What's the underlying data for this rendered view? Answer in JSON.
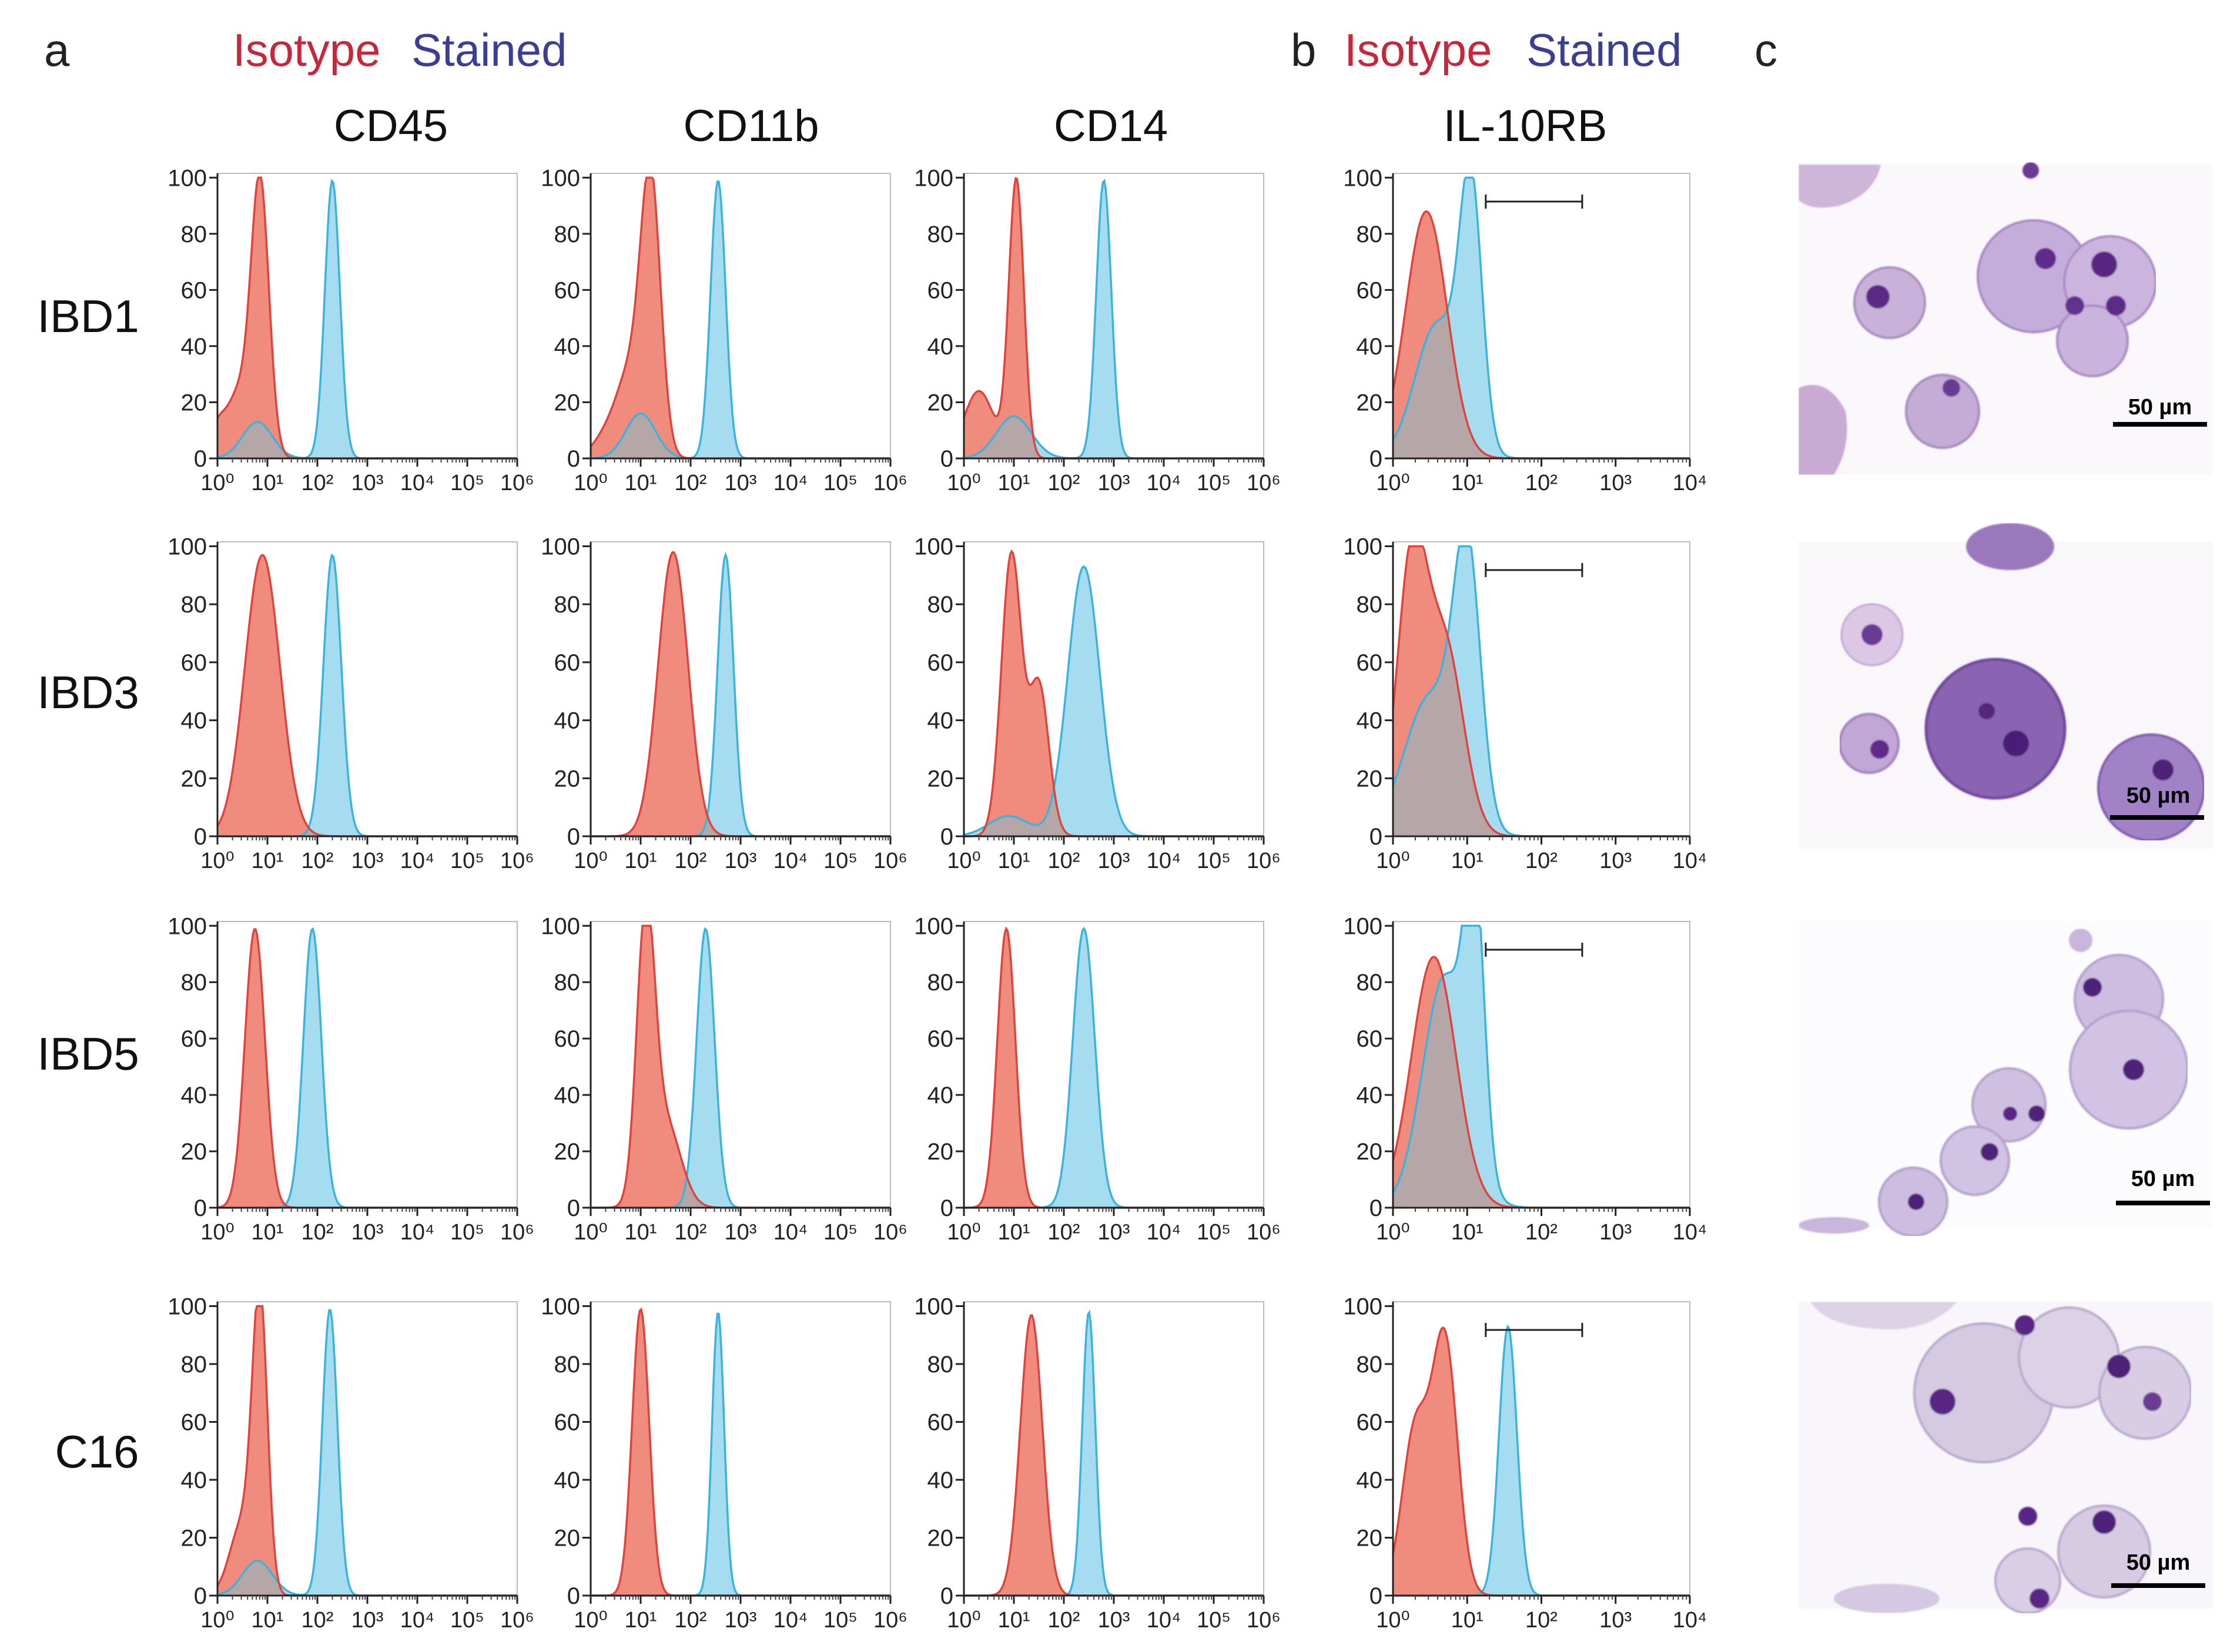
{
  "panel_labels": {
    "a": "a",
    "b": "b",
    "c": "c"
  },
  "legend": {
    "isotype": "Isotype",
    "stained": "Stained"
  },
  "colors": {
    "isotype_line": "#e0433b",
    "isotype_fill": "#f08c7d",
    "stained_line": "#3cb3dc",
    "stained_fill": "#a6dcef",
    "overlap_fill": "#b5a6a8",
    "isotype_text": "#c4283a",
    "stained_text": "#3a3f94"
  },
  "column_titles": [
    "CD45",
    "CD11b",
    "CD14",
    "IL-10RB"
  ],
  "row_labels": [
    "IBD1",
    "IBD3",
    "IBD5",
    "C16"
  ],
  "scale_bar_label": "50 µm",
  "chart_data": {
    "type": "area",
    "y_ticks": [
      "0",
      "20",
      "40",
      "60",
      "80",
      "100"
    ],
    "ylim": [
      0,
      100
    ],
    "x_scale": "log10",
    "x_ticks_wide": [
      "10⁰",
      "10¹",
      "10²",
      "10³",
      "10⁴",
      "10⁵",
      "10⁶"
    ],
    "x_ticks_il10rb": [
      "10⁰",
      "10¹",
      "10²",
      "10³",
      "10⁴"
    ],
    "xlim_wide": [
      0,
      6
    ],
    "xlim_il10rb": [
      0,
      4
    ],
    "gate_range_log": [
      1.25,
      2.55
    ],
    "panels": [
      {
        "row": "IBD1",
        "marker": "CD45",
        "iso": [
          {
            "c": 0.85,
            "s": 0.18,
            "h": 99
          },
          {
            "c": 0.4,
            "s": 0.22,
            "h": 22
          },
          {
            "c": 0,
            "s": 0.15,
            "h": 10
          }
        ],
        "st": [
          {
            "c": 2.3,
            "s": 0.15,
            "h": 99
          },
          {
            "c": 0.8,
            "s": 0.3,
            "h": 13
          }
        ]
      },
      {
        "row": "IBD1",
        "marker": "CD11b",
        "iso": [
          {
            "c": 1.2,
            "s": 0.2,
            "h": 98
          },
          {
            "c": 0.8,
            "s": 0.25,
            "h": 25
          },
          {
            "c": 0.4,
            "s": 0.3,
            "h": 10
          }
        ],
        "st": [
          {
            "c": 2.55,
            "s": 0.15,
            "h": 99
          },
          {
            "c": 1,
            "s": 0.3,
            "h": 16
          }
        ]
      },
      {
        "row": "IBD1",
        "marker": "CD14",
        "iso": [
          {
            "c": 1.05,
            "s": 0.15,
            "h": 99
          },
          {
            "c": 0.3,
            "s": 0.3,
            "h": 24
          }
        ],
        "st": [
          {
            "c": 2.8,
            "s": 0.15,
            "h": 99
          },
          {
            "c": 1,
            "s": 0.35,
            "h": 15
          }
        ]
      },
      {
        "row": "IBD1",
        "marker": "IL-10RB",
        "iso": [
          {
            "c": 0.45,
            "s": 0.28,
            "h": 88
          }
        ],
        "st": [
          {
            "c": 1.05,
            "s": 0.15,
            "h": 90
          },
          {
            "c": 0.6,
            "s": 0.3,
            "h": 48
          }
        ]
      },
      {
        "row": "IBD3",
        "marker": "CD45",
        "iso": [
          {
            "c": 0.9,
            "s": 0.35,
            "h": 97
          }
        ],
        "st": [
          {
            "c": 2.3,
            "s": 0.18,
            "h": 97
          }
        ]
      },
      {
        "row": "IBD3",
        "marker": "CD11b",
        "iso": [
          {
            "c": 1.65,
            "s": 0.3,
            "h": 98
          }
        ],
        "st": [
          {
            "c": 2.7,
            "s": 0.16,
            "h": 97
          }
        ]
      },
      {
        "row": "IBD3",
        "marker": "CD14",
        "iso": [
          {
            "c": 0.95,
            "s": 0.2,
            "h": 97
          },
          {
            "c": 1.5,
            "s": 0.2,
            "h": 52
          }
        ],
        "st": [
          {
            "c": 2.4,
            "s": 0.32,
            "h": 93
          },
          {
            "c": 0.9,
            "s": 0.4,
            "h": 7
          }
        ]
      },
      {
        "row": "IBD3",
        "marker": "IL-10RB",
        "iso": [
          {
            "c": 0.25,
            "s": 0.2,
            "h": 92
          },
          {
            "c": 0.7,
            "s": 0.25,
            "h": 65
          }
        ],
        "st": [
          {
            "c": 1.0,
            "s": 0.18,
            "h": 90
          },
          {
            "c": 0.5,
            "s": 0.35,
            "h": 48
          }
        ]
      },
      {
        "row": "IBD5",
        "marker": "CD45",
        "iso": [
          {
            "c": 0.75,
            "s": 0.2,
            "h": 99
          }
        ],
        "st": [
          {
            "c": 1.9,
            "s": 0.18,
            "h": 99
          }
        ]
      },
      {
        "row": "IBD5",
        "marker": "CD11b",
        "iso": [
          {
            "c": 1.1,
            "s": 0.18,
            "h": 98
          },
          {
            "c": 1.5,
            "s": 0.3,
            "h": 30
          }
        ],
        "st": [
          {
            "c": 2.3,
            "s": 0.18,
            "h": 99
          }
        ]
      },
      {
        "row": "IBD5",
        "marker": "CD14",
        "iso": [
          {
            "c": 0.85,
            "s": 0.18,
            "h": 99
          }
        ],
        "st": [
          {
            "c": 2.4,
            "s": 0.22,
            "h": 99
          }
        ]
      },
      {
        "row": "IBD5",
        "marker": "IL-10RB",
        "iso": [
          {
            "c": 0.55,
            "s": 0.3,
            "h": 89
          }
        ],
        "st": [
          {
            "c": 1.1,
            "s": 0.13,
            "h": 93
          },
          {
            "c": 0.7,
            "s": 0.3,
            "h": 82
          }
        ]
      },
      {
        "row": "C16",
        "marker": "CD45",
        "iso": [
          {
            "c": 0.85,
            "s": 0.15,
            "h": 99
          },
          {
            "c": 0.5,
            "s": 0.25,
            "h": 25
          }
        ],
        "st": [
          {
            "c": 2.25,
            "s": 0.15,
            "h": 99
          },
          {
            "c": 0.8,
            "s": 0.3,
            "h": 12
          }
        ]
      },
      {
        "row": "C16",
        "marker": "CD11b",
        "iso": [
          {
            "c": 1.0,
            "s": 0.17,
            "h": 99
          }
        ],
        "st": [
          {
            "c": 2.55,
            "s": 0.12,
            "h": 98
          }
        ]
      },
      {
        "row": "C16",
        "marker": "CD14",
        "iso": [
          {
            "c": 1.35,
            "s": 0.22,
            "h": 97
          }
        ],
        "st": [
          {
            "c": 2.5,
            "s": 0.13,
            "h": 98
          }
        ]
      },
      {
        "row": "C16",
        "marker": "IL-10RB",
        "iso": [
          {
            "c": 0.3,
            "s": 0.18,
            "h": 57
          },
          {
            "c": 0.7,
            "s": 0.17,
            "h": 87
          }
        ],
        "st": [
          {
            "c": 1.55,
            "s": 0.12,
            "h": 93
          }
        ]
      }
    ]
  }
}
